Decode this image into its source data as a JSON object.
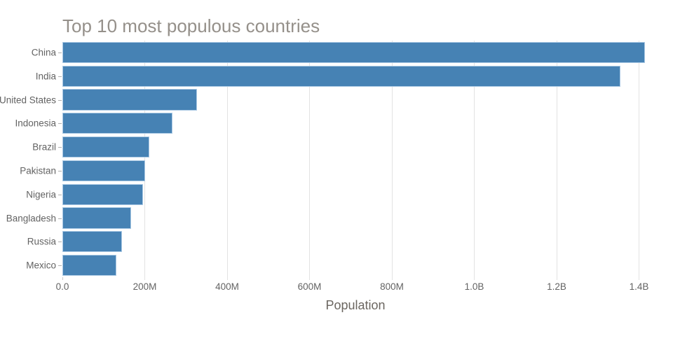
{
  "chart_data": {
    "type": "bar",
    "orientation": "horizontal",
    "title": "Top 10 most populous countries",
    "xlabel": "Population",
    "ylabel": "",
    "categories": [
      "China",
      "India",
      "United States",
      "Indonesia",
      "Brazil",
      "Pakistan",
      "Nigeria",
      "Bangladesh",
      "Russia",
      "Mexico"
    ],
    "values_millions": [
      1415.0,
      1354.1,
      326.8,
      266.8,
      210.9,
      200.8,
      195.9,
      166.4,
      144.0,
      130.8
    ],
    "values_unit": "persons (millions)",
    "xlim_millions": [
      0,
      1423
    ],
    "x_ticks": [
      {
        "value": 0,
        "label": "0.0"
      },
      {
        "value": 200,
        "label": "200M"
      },
      {
        "value": 400,
        "label": "400M"
      },
      {
        "value": 600,
        "label": "600M"
      },
      {
        "value": 800,
        "label": "800M"
      },
      {
        "value": 1000,
        "label": "1.0B"
      },
      {
        "value": 1200,
        "label": "1.2B"
      },
      {
        "value": 1400,
        "label": "1.4B"
      }
    ],
    "grid": "vertical",
    "legend": "none",
    "colors": {
      "bar_fill": "#4682b4",
      "bar_border": "#aac9e4",
      "gridline": "#e2e2e2",
      "axis_text": "#636363",
      "title_text": "#95908a",
      "axis_title_text": "#6b6660",
      "background": "#ffffff"
    }
  }
}
